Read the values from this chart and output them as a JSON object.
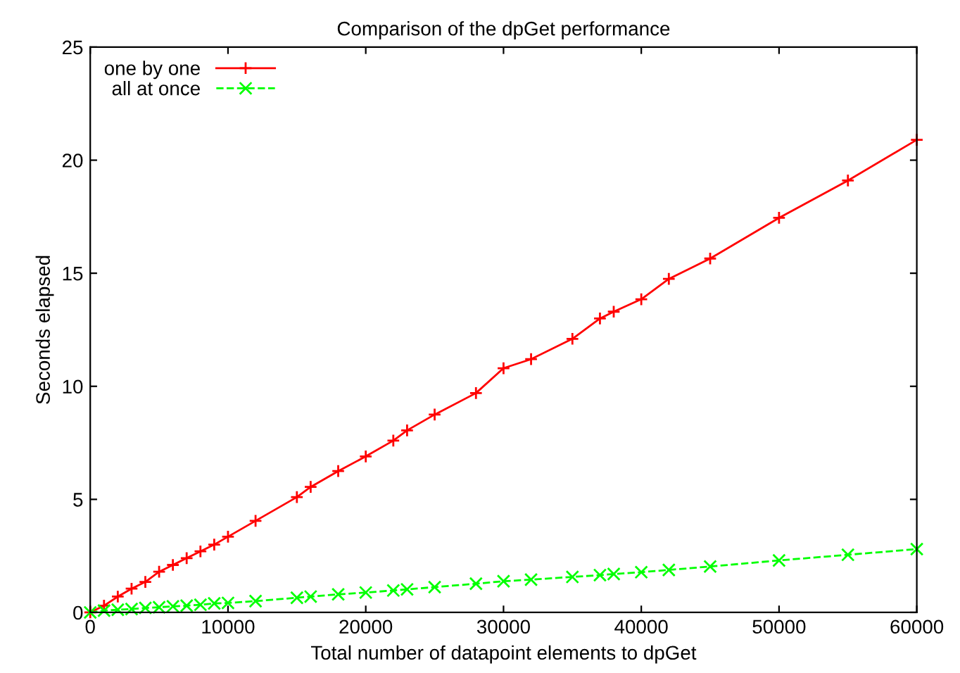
{
  "chart_data": {
    "type": "line",
    "title": "Comparison of the dpGet performance",
    "xlabel": "Total number of datapoint elements to dpGet",
    "ylabel": "Seconds elapsed",
    "x": [
      0,
      1000,
      2000,
      3000,
      4000,
      5000,
      6000,
      7000,
      8000,
      9000,
      10000,
      12000,
      15000,
      16000,
      18000,
      20000,
      22000,
      23000,
      25000,
      28000,
      30000,
      32000,
      35000,
      37000,
      38000,
      40000,
      42000,
      45000,
      50000,
      55000,
      60000
    ],
    "series": [
      {
        "name": "one by one",
        "color": "#ff0000",
        "marker": "cross",
        "line_style": "solid",
        "values": [
          0.0,
          0.3,
          0.7,
          1.05,
          1.35,
          1.8,
          2.1,
          2.4,
          2.7,
          3.0,
          3.35,
          4.05,
          5.1,
          5.55,
          6.25,
          6.9,
          7.6,
          8.05,
          8.75,
          9.7,
          10.8,
          11.2,
          12.1,
          13.0,
          13.3,
          13.85,
          14.75,
          15.65,
          17.45,
          19.1,
          20.9
        ]
      },
      {
        "name": "all at once",
        "color": "#00ff00",
        "marker": "x",
        "line_style": "dashed",
        "values": [
          0.0,
          0.08,
          0.12,
          0.15,
          0.2,
          0.23,
          0.27,
          0.3,
          0.34,
          0.4,
          0.42,
          0.5,
          0.65,
          0.7,
          0.8,
          0.88,
          0.97,
          1.02,
          1.12,
          1.27,
          1.38,
          1.45,
          1.57,
          1.65,
          1.7,
          1.78,
          1.88,
          2.03,
          2.3,
          2.55,
          2.8
        ]
      }
    ],
    "xlim": [
      0,
      60000
    ],
    "xticks": [
      0,
      10000,
      20000,
      30000,
      40000,
      50000,
      60000
    ],
    "ylim": [
      0,
      25
    ],
    "yticks": [
      0,
      5,
      10,
      15,
      20,
      25
    ],
    "grid": false,
    "legend": "top left"
  }
}
